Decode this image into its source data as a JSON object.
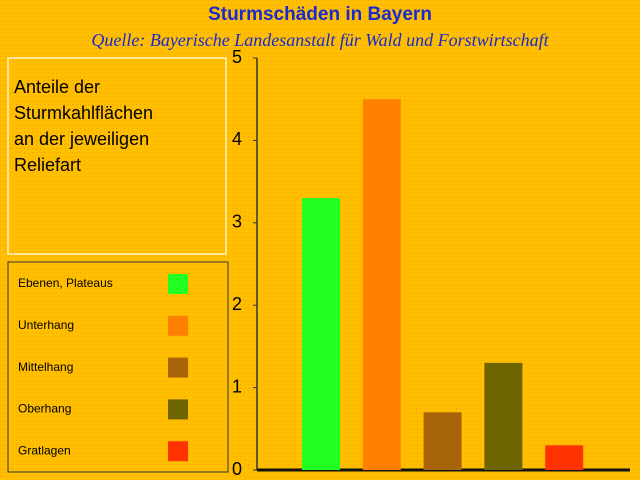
{
  "chart_data": {
    "type": "bar",
    "title": "Sturmschäden in Bayern",
    "subtitle": "Quelle: Bayerische Landesanstalt für Wald und Forstwirtschaft",
    "annotation_lines": [
      "Anteile der",
      "Sturmkahlflächen",
      "an der jeweiligen",
      "Reliefart"
    ],
    "categories": [
      "Ebenen, Plateaus",
      "Unterhang",
      "Mittelhang",
      "Oberhang",
      "Gratlagen"
    ],
    "values": [
      3.3,
      4.5,
      0.7,
      1.3,
      0.3
    ],
    "colors": [
      "#22ff22",
      "#ff8000",
      "#a8640a",
      "#6e6400",
      "#ff3300"
    ],
    "ylim": [
      0,
      5
    ],
    "yticks": [
      0,
      1,
      2,
      3,
      4,
      5
    ],
    "grid": false
  }
}
